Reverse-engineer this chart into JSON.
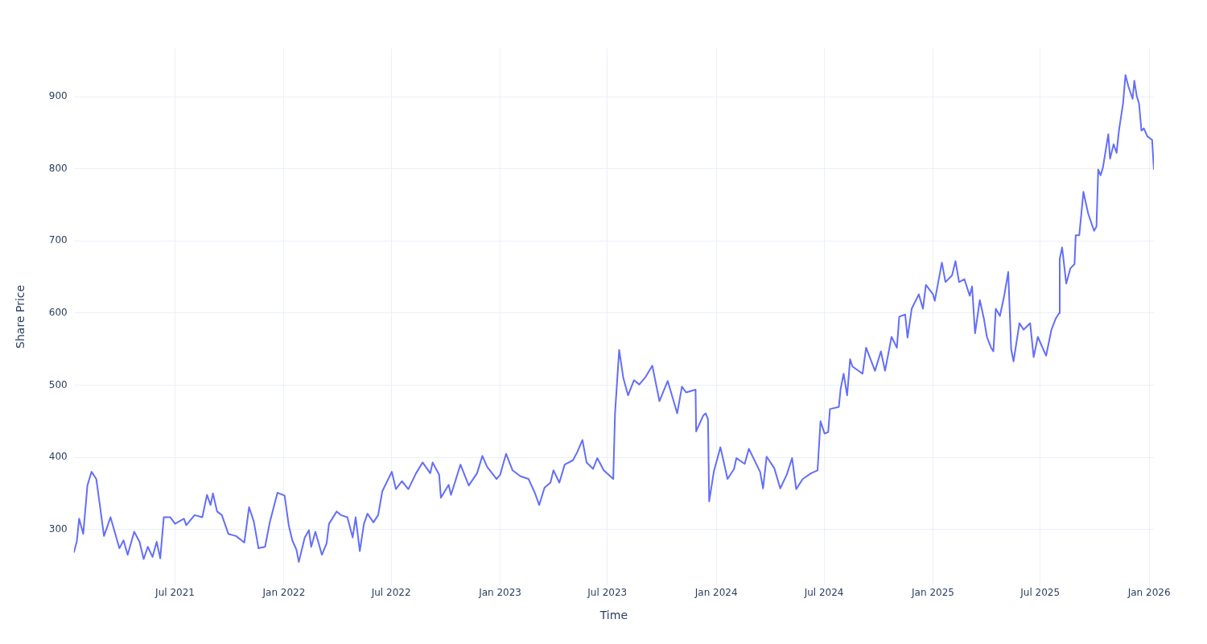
{
  "chart_data": {
    "type": "line",
    "xlabel": "Time",
    "ylabel": "Share Price",
    "color": "#636efa",
    "grid": true,
    "x": [
      "2021-01-11",
      "2021-01-16",
      "2021-01-20",
      "2021-01-27",
      "2021-02-03",
      "2021-02-07",
      "2021-02-10",
      "2021-02-18",
      "2021-02-24",
      "2021-03-03",
      "2021-03-14",
      "2021-03-29",
      "2021-04-05",
      "2021-04-12",
      "2021-04-23",
      "2021-05-02",
      "2021-05-09",
      "2021-05-16",
      "2021-05-24",
      "2021-05-31",
      "2021-06-06",
      "2021-06-12",
      "2021-06-23",
      "2021-07-01",
      "2021-07-16",
      "2021-07-20",
      "2021-08-03",
      "2021-08-16",
      "2021-08-24",
      "2021-08-30",
      "2021-09-03",
      "2021-09-10",
      "2021-09-18",
      "2021-09-29",
      "2021-10-12",
      "2021-10-26",
      "2021-11-03",
      "2021-11-11",
      "2021-11-19",
      "2021-11-30",
      "2021-12-08",
      "2021-12-21",
      "2022-01-02",
      "2022-01-09",
      "2022-01-15",
      "2022-01-22",
      "2022-01-26",
      "2022-02-05",
      "2022-02-12",
      "2022-02-16",
      "2022-02-23",
      "2022-03-06",
      "2022-03-14",
      "2022-03-18",
      "2022-03-31",
      "2022-04-07",
      "2022-04-18",
      "2022-04-27",
      "2022-05-02",
      "2022-05-09",
      "2022-05-16",
      "2022-05-22",
      "2022-06-01",
      "2022-06-09",
      "2022-06-16",
      "2022-07-02",
      "2022-07-09",
      "2022-07-19",
      "2022-07-30",
      "2022-08-12",
      "2022-08-23",
      "2022-09-05",
      "2022-09-09",
      "2022-09-20",
      "2022-09-23",
      "2022-10-06",
      "2022-10-10",
      "2022-10-26",
      "2022-11-09",
      "2022-11-23",
      "2022-12-02",
      "2022-12-10",
      "2022-12-26",
      "2023-01-01",
      "2023-01-11",
      "2023-01-22",
      "2023-02-04",
      "2023-02-18",
      "2023-03-01",
      "2023-03-08",
      "2023-03-17",
      "2023-03-27",
      "2023-04-01",
      "2023-04-11",
      "2023-04-20",
      "2023-05-04",
      "2023-05-11",
      "2023-05-20",
      "2023-05-27",
      "2023-06-07",
      "2023-06-14",
      "2023-06-25",
      "2023-07-11",
      "2023-07-14",
      "2023-07-21",
      "2023-07-28",
      "2023-08-05",
      "2023-08-15",
      "2023-08-24",
      "2023-09-04",
      "2023-09-15",
      "2023-09-27",
      "2023-10-11",
      "2023-10-27",
      "2023-11-04",
      "2023-11-11",
      "2023-11-27",
      "2023-11-28",
      "2023-12-10",
      "2023-12-14",
      "2023-12-18",
      "2023-12-20",
      "2023-12-28",
      "2024-01-08",
      "2024-01-20",
      "2024-01-31",
      "2024-02-04",
      "2024-02-18",
      "2024-02-25",
      "2024-03-15",
      "2024-03-20",
      "2024-03-26",
      "2024-04-08",
      "2024-04-18",
      "2024-04-29",
      "2024-05-08",
      "2024-05-15",
      "2024-05-26",
      "2024-06-09",
      "2024-06-20",
      "2024-06-25",
      "2024-07-02",
      "2024-07-08",
      "2024-07-11",
      "2024-07-26",
      "2024-07-29",
      "2024-08-03",
      "2024-08-09",
      "2024-08-14",
      "2024-08-18",
      "2024-09-04",
      "2024-09-10",
      "2024-09-25",
      "2024-10-05",
      "2024-10-12",
      "2024-10-23",
      "2024-11-01",
      "2024-11-05",
      "2024-11-15",
      "2024-11-19",
      "2024-11-26",
      "2024-12-08",
      "2024-12-15",
      "2024-12-20",
      "2025-01-01",
      "2025-01-04",
      "2025-01-16",
      "2025-01-22",
      "2025-02-02",
      "2025-02-08",
      "2025-02-14",
      "2025-02-23",
      "2025-03-04",
      "2025-03-08",
      "2025-03-13",
      "2025-03-21",
      "2025-03-28",
      "2025-04-02",
      "2025-04-09",
      "2025-04-13",
      "2025-04-17",
      "2025-04-24",
      "2025-05-01",
      "2025-05-08",
      "2025-05-13",
      "2025-05-17",
      "2025-05-27",
      "2025-06-03",
      "2025-06-14",
      "2025-06-20",
      "2025-06-27",
      "2025-07-11",
      "2025-07-20",
      "2025-07-27",
      "2025-08-02",
      "2025-08-03",
      "2025-08-07",
      "2025-08-14",
      "2025-08-21",
      "2025-08-28",
      "2025-08-30",
      "2025-09-05",
      "2025-09-12",
      "2025-09-20",
      "2025-09-30",
      "2025-10-04",
      "2025-10-07",
      "2025-10-11",
      "2025-10-15",
      "2025-10-24",
      "2025-10-27",
      "2025-11-02",
      "2025-11-07",
      "2025-11-11",
      "2025-11-18",
      "2025-11-22",
      "2025-11-27",
      "2025-12-04",
      "2025-12-07",
      "2025-12-11",
      "2025-12-15",
      "2025-12-19",
      "2025-12-23",
      "2025-12-29",
      "2026-01-06",
      "2026-01-09"
    ],
    "values": [
      268,
      283,
      315,
      294,
      361,
      372,
      380,
      370,
      334,
      291,
      317,
      274,
      285,
      265,
      297,
      283,
      259,
      276,
      262,
      283,
      260,
      317,
      317,
      308,
      315,
      306,
      320,
      317,
      348,
      334,
      350,
      325,
      320,
      294,
      291,
      282,
      331,
      311,
      274,
      276,
      310,
      351,
      347,
      306,
      285,
      272,
      255,
      289,
      299,
      276,
      297,
      265,
      281,
      308,
      325,
      320,
      317,
      289,
      317,
      270,
      308,
      322,
      310,
      320,
      353,
      380,
      356,
      367,
      356,
      378,
      393,
      378,
      393,
      376,
      344,
      362,
      348,
      390,
      361,
      378,
      402,
      387,
      370,
      376,
      405,
      382,
      374,
      370,
      350,
      334,
      358,
      365,
      382,
      365,
      390,
      396,
      407,
      424,
      393,
      384,
      399,
      382,
      370,
      461,
      549,
      510,
      486,
      507,
      501,
      512,
      527,
      478,
      506,
      461,
      498,
      490,
      494,
      436,
      458,
      461,
      453,
      339,
      381,
      414,
      370,
      384,
      399,
      391,
      412,
      380,
      357,
      401,
      385,
      357,
      376,
      399,
      356,
      370,
      378,
      382,
      450,
      433,
      435,
      467,
      470,
      495,
      516,
      486,
      536,
      526,
      516,
      552,
      520,
      547,
      520,
      567,
      552,
      595,
      598,
      566,
      606,
      626,
      606,
      639,
      626,
      617,
      670,
      643,
      652,
      672,
      643,
      647,
      624,
      637,
      572,
      618,
      592,
      567,
      552,
      547,
      606,
      596,
      623,
      657,
      550,
      533,
      586,
      577,
      586,
      539,
      567,
      541,
      577,
      592,
      600,
      675,
      691,
      641,
      662,
      668,
      708,
      708,
      768,
      738,
      714,
      720,
      799,
      791,
      802,
      848,
      814,
      834,
      822,
      853,
      891,
      930,
      914,
      897,
      922,
      901,
      890,
      853,
      856,
      845,
      840,
      799
    ],
    "xlim": [
      "2021-01-11",
      "2026-01-09"
    ],
    "ylim": [
      223,
      967
    ],
    "xticks": [
      {
        "value": "2021-07",
        "label": "Jul 2021"
      },
      {
        "value": "2022-01",
        "label": "Jan 2022"
      },
      {
        "value": "2022-07",
        "label": "Jul 2022"
      },
      {
        "value": "2023-01",
        "label": "Jan 2023"
      },
      {
        "value": "2023-07",
        "label": "Jul 2023"
      },
      {
        "value": "2024-01",
        "label": "Jan 2024"
      },
      {
        "value": "2024-07",
        "label": "Jul 2024"
      },
      {
        "value": "2025-01",
        "label": "Jan 2025"
      },
      {
        "value": "2025-07",
        "label": "Jul 2025"
      },
      {
        "value": "2026-01",
        "label": "Jan 2026"
      }
    ],
    "yticks": [
      300,
      400,
      500,
      600,
      700,
      800,
      900
    ]
  }
}
